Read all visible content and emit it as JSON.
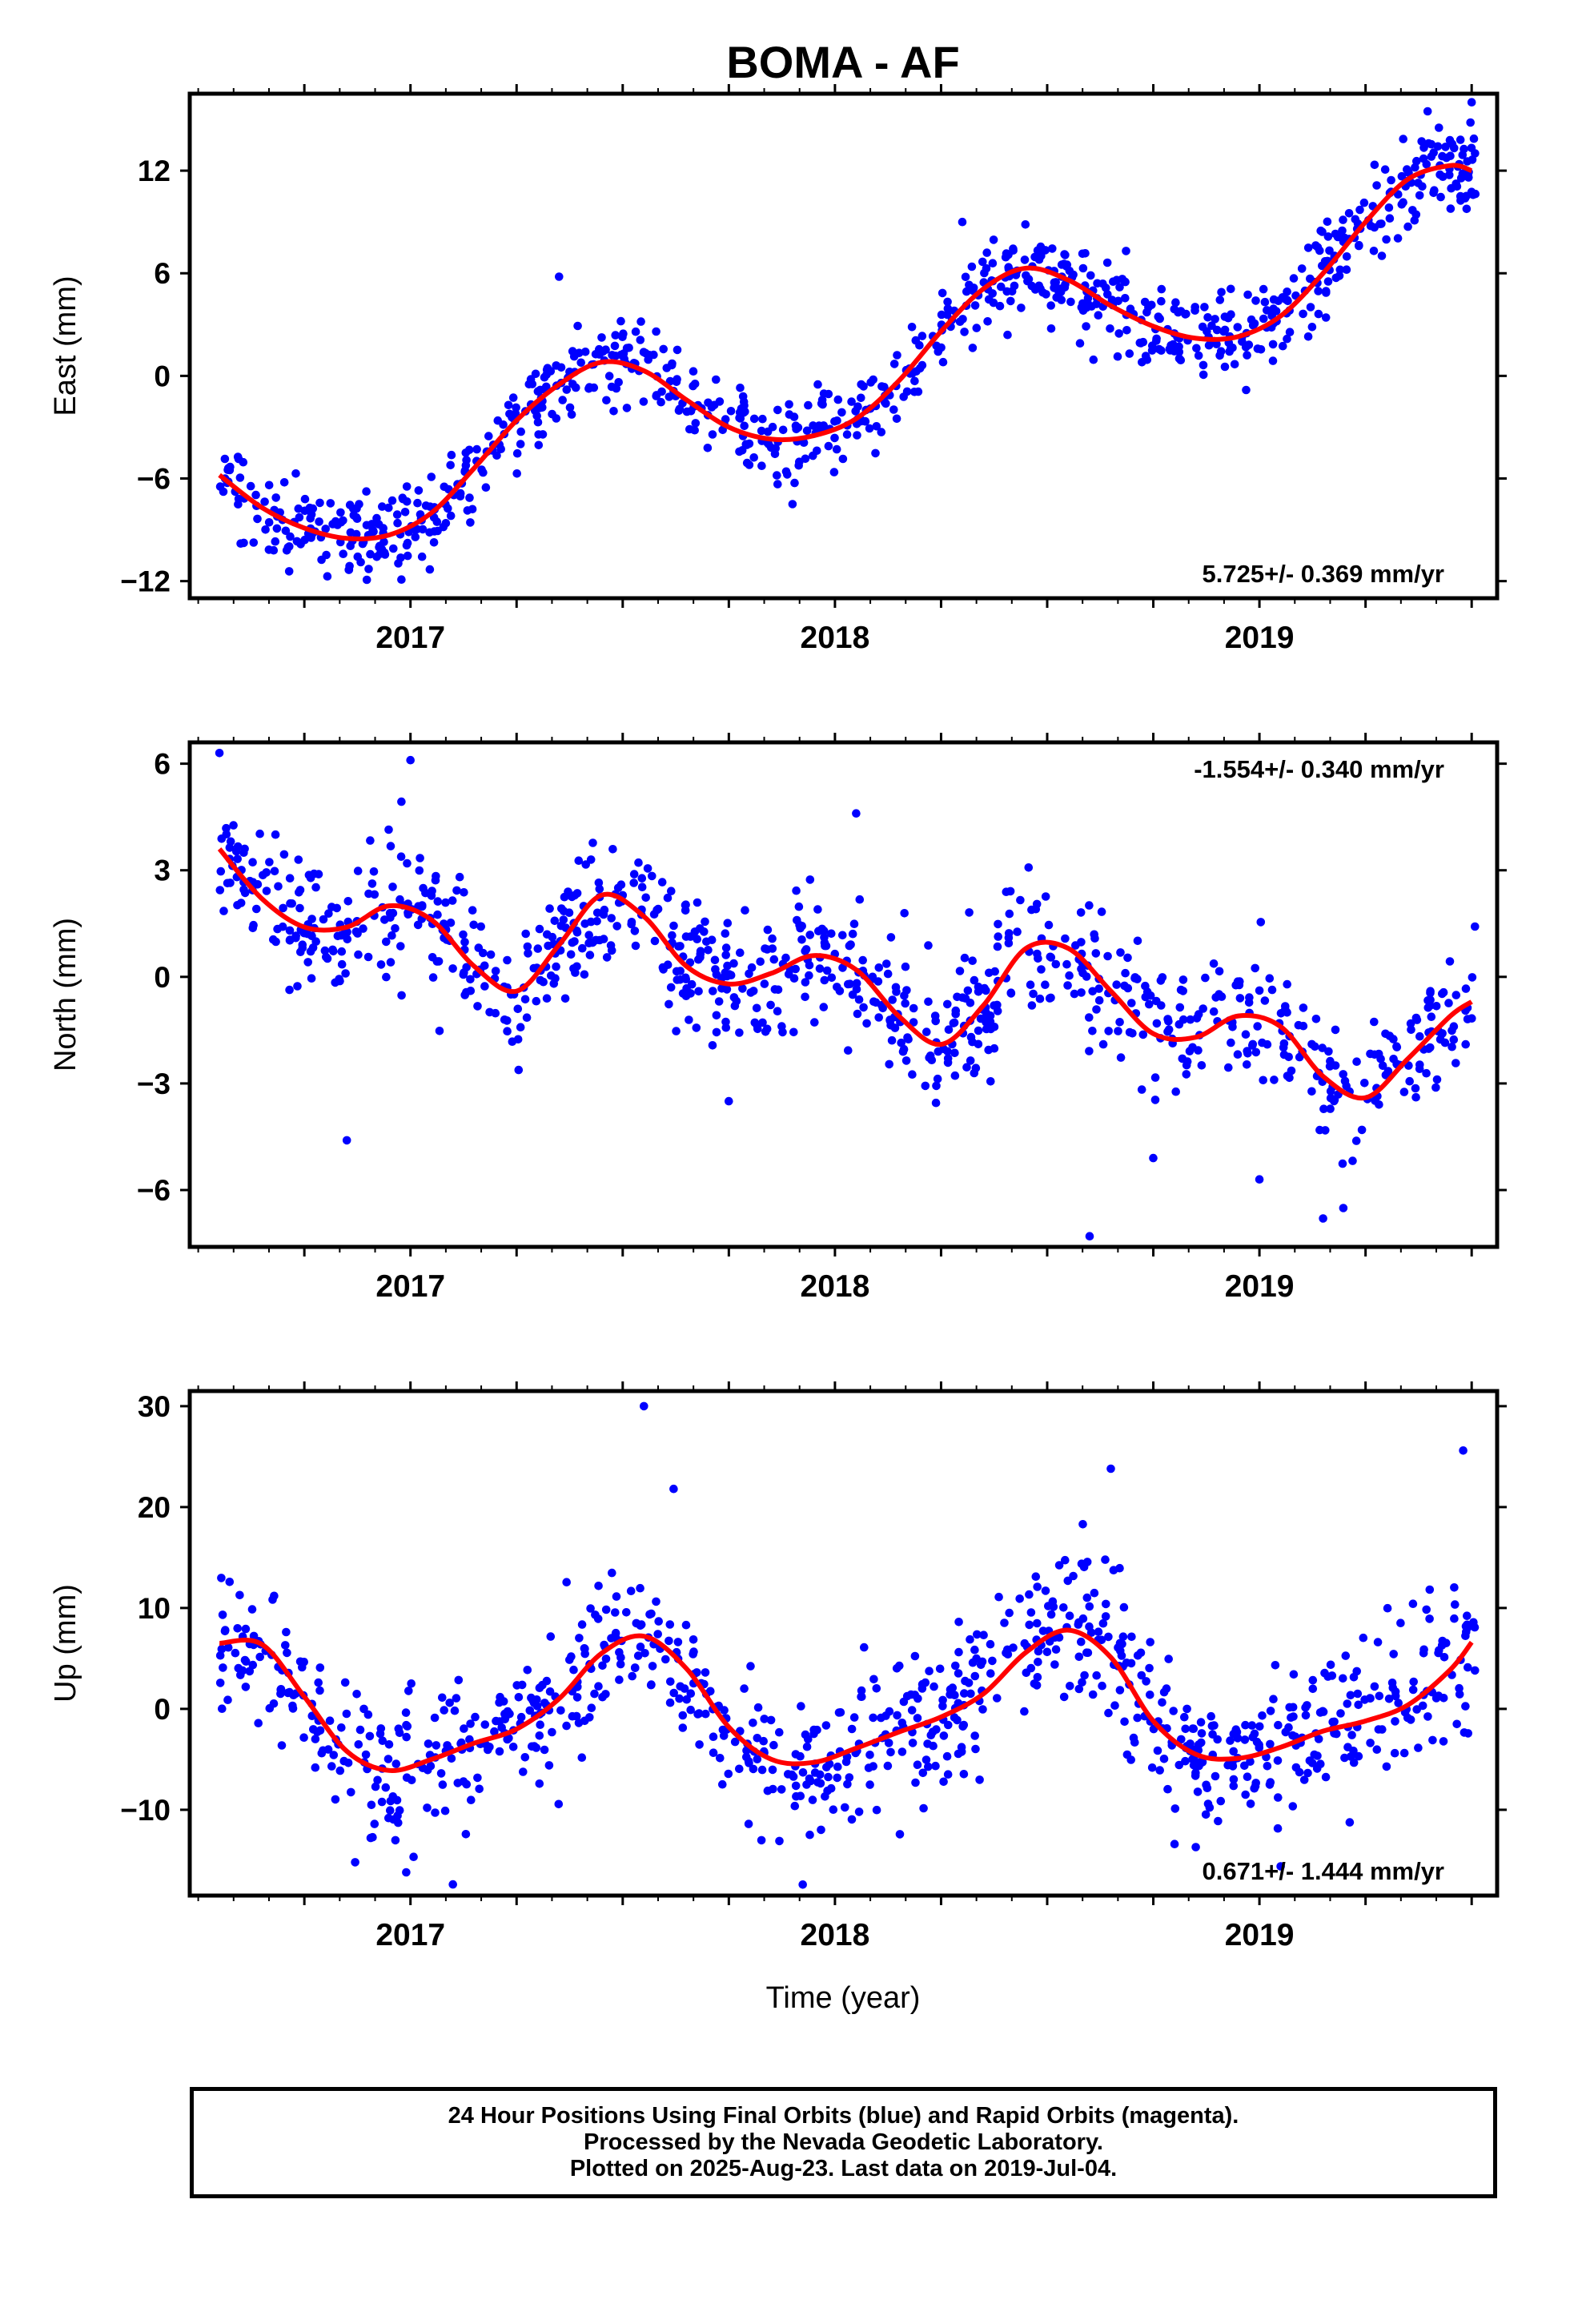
{
  "title": "BOMA - AF",
  "x_label": "Time (year)",
  "caption": {
    "line1": "24 Hour Positions Using Final Orbits (blue) and Rapid Orbits (magenta).",
    "line2": "Processed by the Nevada Geodetic Laboratory.",
    "line3": "Plotted on 2025-Aug-23. Last data on 2019-Jul-04."
  },
  "colors": {
    "points": "#0000ff",
    "fit": "#ff0000",
    "frame": "#000000"
  },
  "chart_data": [
    {
      "type": "scatter",
      "ylabel": "East (mm)",
      "rate_label": "5.725+/- 0.369 mm/yr",
      "rate_position": "bottom-right",
      "xlim": [
        2016.48,
        2019.56
      ],
      "ylim": [
        -13,
        16.5
      ],
      "yticks": [
        -12,
        -6,
        0,
        6,
        12
      ],
      "xticks": [
        2017,
        2018,
        2019
      ],
      "fit_series": {
        "name": "",
        "x": [
          2016.55,
          2016.65,
          2016.75,
          2016.85,
          2016.95,
          2017.05,
          2017.15,
          2017.25,
          2017.35,
          2017.45,
          2017.55,
          2017.65,
          2017.75,
          2017.85,
          2017.95,
          2018.05,
          2018.15,
          2018.25,
          2018.35,
          2018.45,
          2018.55,
          2018.65,
          2018.75,
          2018.85,
          2018.95,
          2019.05,
          2019.15,
          2019.25,
          2019.35,
          2019.45,
          2019.5
        ],
        "y": [
          -5.8,
          -7.7,
          -8.9,
          -9.5,
          -9.3,
          -8.0,
          -5.4,
          -2.6,
          -0.5,
          0.8,
          0.3,
          -1.4,
          -3.0,
          -3.7,
          -3.5,
          -2.5,
          -0.3,
          2.6,
          5.1,
          6.3,
          5.6,
          4.1,
          2.9,
          2.2,
          2.3,
          3.5,
          6.0,
          9.0,
          11.5,
          12.3,
          12.0
        ]
      },
      "scatter": {
        "n": 900,
        "sigma_mm": 1.3,
        "outliers": [
          [
            2016.6,
            -9.8
          ],
          [
            2017.35,
            5.8
          ],
          [
            2018.3,
            9.0
          ],
          [
            2019.5,
            16.0
          ],
          [
            2017.9,
            -7.5
          ]
        ]
      }
    },
    {
      "type": "scatter",
      "ylabel": "North (mm)",
      "rate_label": "-1.554+/- 0.340 mm/yr",
      "rate_position": "top-right",
      "xlim": [
        2016.48,
        2019.56
      ],
      "ylim": [
        -7.6,
        6.6
      ],
      "yticks": [
        -6,
        -3,
        0,
        3,
        6
      ],
      "xticks": [
        2017,
        2018,
        2019
      ],
      "fit_series": {
        "name": "",
        "x": [
          2016.55,
          2016.65,
          2016.75,
          2016.85,
          2016.95,
          2017.05,
          2017.15,
          2017.25,
          2017.35,
          2017.45,
          2017.55,
          2017.65,
          2017.75,
          2017.85,
          2017.95,
          2018.05,
          2018.15,
          2018.25,
          2018.35,
          2018.45,
          2018.55,
          2018.65,
          2018.75,
          2018.85,
          2018.95,
          2019.05,
          2019.15,
          2019.25,
          2019.35,
          2019.45,
          2019.5
        ],
        "y": [
          3.6,
          2.2,
          1.4,
          1.4,
          2.0,
          1.6,
          0.3,
          -0.4,
          0.9,
          2.3,
          1.7,
          0.3,
          -0.2,
          0.1,
          0.6,
          0.2,
          -1.1,
          -1.9,
          -0.8,
          0.8,
          0.8,
          -0.4,
          -1.6,
          -1.7,
          -1.1,
          -1.4,
          -2.8,
          -3.4,
          -2.3,
          -1.1,
          -0.7
        ]
      },
      "scatter": {
        "n": 900,
        "sigma_mm": 0.95,
        "outliers": [
          [
            2016.55,
            6.3
          ],
          [
            2017.0,
            6.1
          ],
          [
            2016.85,
            -4.6
          ],
          [
            2018.05,
            4.6
          ],
          [
            2018.6,
            -7.3
          ],
          [
            2019.0,
            -5.7
          ],
          [
            2019.15,
            -6.8
          ],
          [
            2018.75,
            -5.1
          ],
          [
            2017.75,
            -3.5
          ]
        ]
      }
    },
    {
      "type": "scatter",
      "ylabel": "Up (mm)",
      "rate_label": "0.671+/- 1.444 mm/yr",
      "rate_position": "bottom-right",
      "xlim": [
        2016.48,
        2019.56
      ],
      "ylim": [
        -18.5,
        31.5
      ],
      "yticks": [
        -10,
        0,
        10,
        20,
        30
      ],
      "xticks": [
        2017,
        2018,
        2019
      ],
      "fit_series": {
        "name": "",
        "x": [
          2016.55,
          2016.65,
          2016.75,
          2016.85,
          2016.95,
          2017.05,
          2017.15,
          2017.25,
          2017.35,
          2017.45,
          2017.55,
          2017.65,
          2017.75,
          2017.85,
          2017.95,
          2018.05,
          2018.15,
          2018.25,
          2018.35,
          2018.45,
          2018.55,
          2018.65,
          2018.75,
          2018.85,
          2018.95,
          2019.05,
          2019.15,
          2019.25,
          2019.35,
          2019.45,
          2019.5
        ],
        "y": [
          6.5,
          6.4,
          1.2,
          -4.2,
          -6.1,
          -5.0,
          -3.4,
          -2.0,
          1.0,
          5.5,
          7.2,
          4.0,
          -1.8,
          -5.0,
          -5.3,
          -3.9,
          -2.3,
          -0.8,
          1.5,
          5.6,
          7.8,
          5.1,
          -1.2,
          -4.5,
          -4.9,
          -3.8,
          -2.2,
          -1.2,
          0.4,
          3.9,
          6.6
        ]
      },
      "scatter": {
        "n": 900,
        "sigma_mm": 3.6,
        "outliers": [
          [
            2017.55,
            30.0
          ],
          [
            2018.65,
            23.8
          ],
          [
            2019.48,
            25.6
          ],
          [
            2017.1,
            -17.4
          ],
          [
            2016.99,
            -16.2
          ],
          [
            2017.62,
            21.8
          ],
          [
            2018.85,
            -13.7
          ],
          [
            2019.05,
            -15.6
          ]
        ]
      }
    }
  ]
}
